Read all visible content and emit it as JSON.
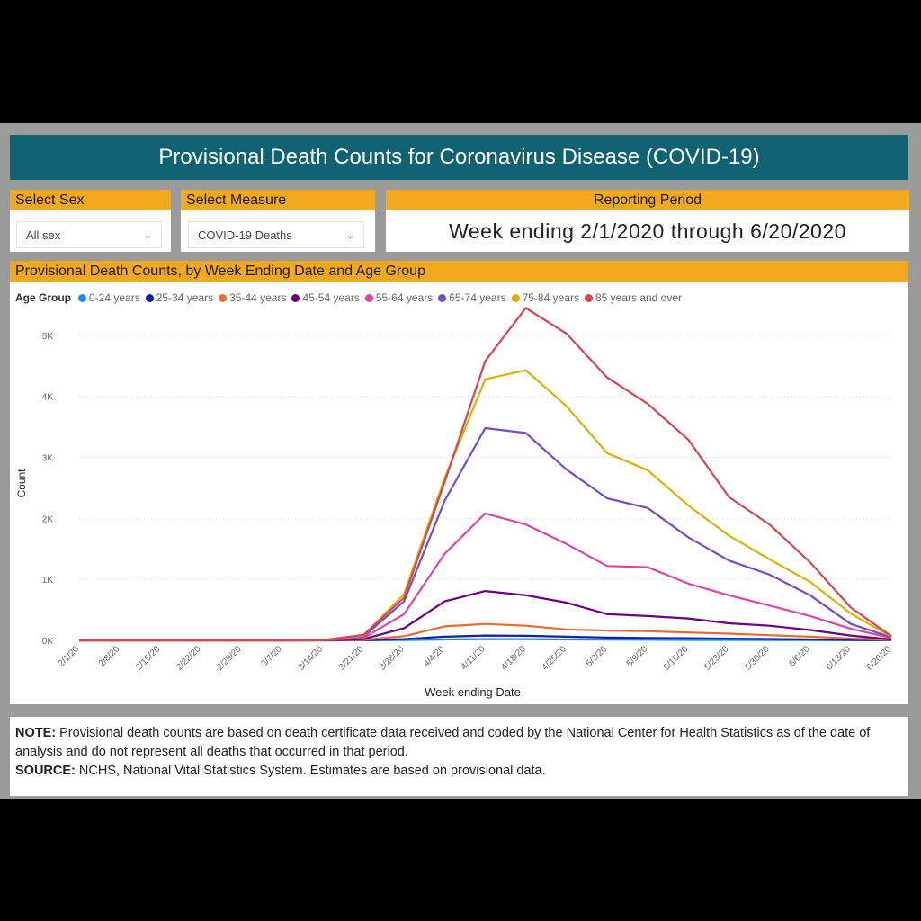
{
  "header": {
    "title": "Provisional Death Counts for Coronavirus Disease (COVID-19)"
  },
  "filters": {
    "sex": {
      "label": "Select Sex",
      "value": "All sex"
    },
    "measure": {
      "label": "Select Measure",
      "value": "COVID-19 Deaths"
    },
    "period": {
      "label": "Reporting Period",
      "value": "Week ending 2/1/2020 through 6/20/2020"
    }
  },
  "chart_section_title": "Provisional Death Counts, by Week Ending Date and Age Group",
  "notes": {
    "note_label": "NOTE:",
    "note_text": " Provisional death counts are based on death certificate data received and coded by the National Center for Health Statistics as of the date of analysis and do not represent all deaths that occurred in that period.",
    "source_label": "SOURCE:",
    "source_text": " NCHS, National Vital Statistics System. Estimates are based on provisional data."
  },
  "chart_data": {
    "type": "line",
    "title": "Provisional Death Counts, by Week Ending Date and Age Group",
    "xlabel": "Week ending Date",
    "ylabel": "Count",
    "legend_title": "Age Group",
    "legend_position": "top-left",
    "ylim": [
      0,
      5500
    ],
    "yticks": [
      0,
      1000,
      2000,
      3000,
      4000,
      5000
    ],
    "ytick_labels": [
      "0K",
      "1K",
      "2K",
      "3K",
      "4K",
      "5K"
    ],
    "grid": true,
    "x": [
      "2/1/20",
      "2/8/20",
      "2/15/20",
      "2/22/20",
      "2/29/20",
      "3/7/20",
      "3/14/20",
      "3/21/20",
      "3/28/20",
      "4/4/20",
      "4/11/20",
      "4/18/20",
      "4/25/20",
      "5/2/20",
      "5/9/20",
      "5/16/20",
      "5/23/20",
      "5/30/20",
      "6/6/20",
      "6/13/20",
      "6/20/20"
    ],
    "series": [
      {
        "name": "0-24 years",
        "color": "#118dff",
        "values": [
          0,
          0,
          0,
          0,
          0,
          0,
          0,
          1,
          5,
          15,
          20,
          20,
          15,
          12,
          10,
          8,
          7,
          6,
          5,
          3,
          1
        ]
      },
      {
        "name": "25-34 years",
        "color": "#12239e",
        "values": [
          0,
          0,
          0,
          0,
          0,
          0,
          0,
          3,
          20,
          60,
          80,
          75,
          60,
          45,
          40,
          35,
          28,
          22,
          15,
          8,
          2
        ]
      },
      {
        "name": "35-44 years",
        "color": "#e66c37",
        "values": [
          0,
          0,
          0,
          0,
          0,
          0,
          1,
          8,
          70,
          230,
          270,
          240,
          180,
          160,
          150,
          130,
          110,
          85,
          60,
          30,
          6
        ]
      },
      {
        "name": "45-54 years",
        "color": "#6b007b",
        "values": [
          0,
          0,
          0,
          0,
          0,
          0,
          2,
          20,
          200,
          640,
          810,
          740,
          620,
          430,
          400,
          360,
          280,
          240,
          170,
          80,
          15
        ]
      },
      {
        "name": "55-64 years",
        "color": "#e044a7",
        "values": [
          0,
          0,
          0,
          0,
          0,
          0,
          3,
          40,
          430,
          1420,
          2080,
          1900,
          1580,
          1220,
          1200,
          930,
          740,
          570,
          400,
          190,
          40
        ]
      },
      {
        "name": "65-74 years",
        "color": "#744ec2",
        "values": [
          0,
          0,
          0,
          0,
          0,
          0,
          5,
          60,
          640,
          2290,
          3480,
          3400,
          2800,
          2330,
          2170,
          1690,
          1310,
          1080,
          740,
          270,
          50
        ]
      },
      {
        "name": "75-84 years",
        "color": "#d9b300",
        "values": [
          0,
          0,
          0,
          0,
          0,
          0,
          5,
          80,
          760,
          2660,
          4280,
          4430,
          3840,
          3070,
          2790,
          2210,
          1720,
          1330,
          960,
          440,
          60
        ]
      },
      {
        "name": "85 years and over",
        "color": "#d64550",
        "values": [
          0,
          0,
          0,
          0,
          0,
          0,
          5,
          90,
          700,
          2600,
          4580,
          5450,
          5030,
          4310,
          3880,
          3290,
          2350,
          1900,
          1280,
          540,
          70
        ]
      }
    ]
  }
}
